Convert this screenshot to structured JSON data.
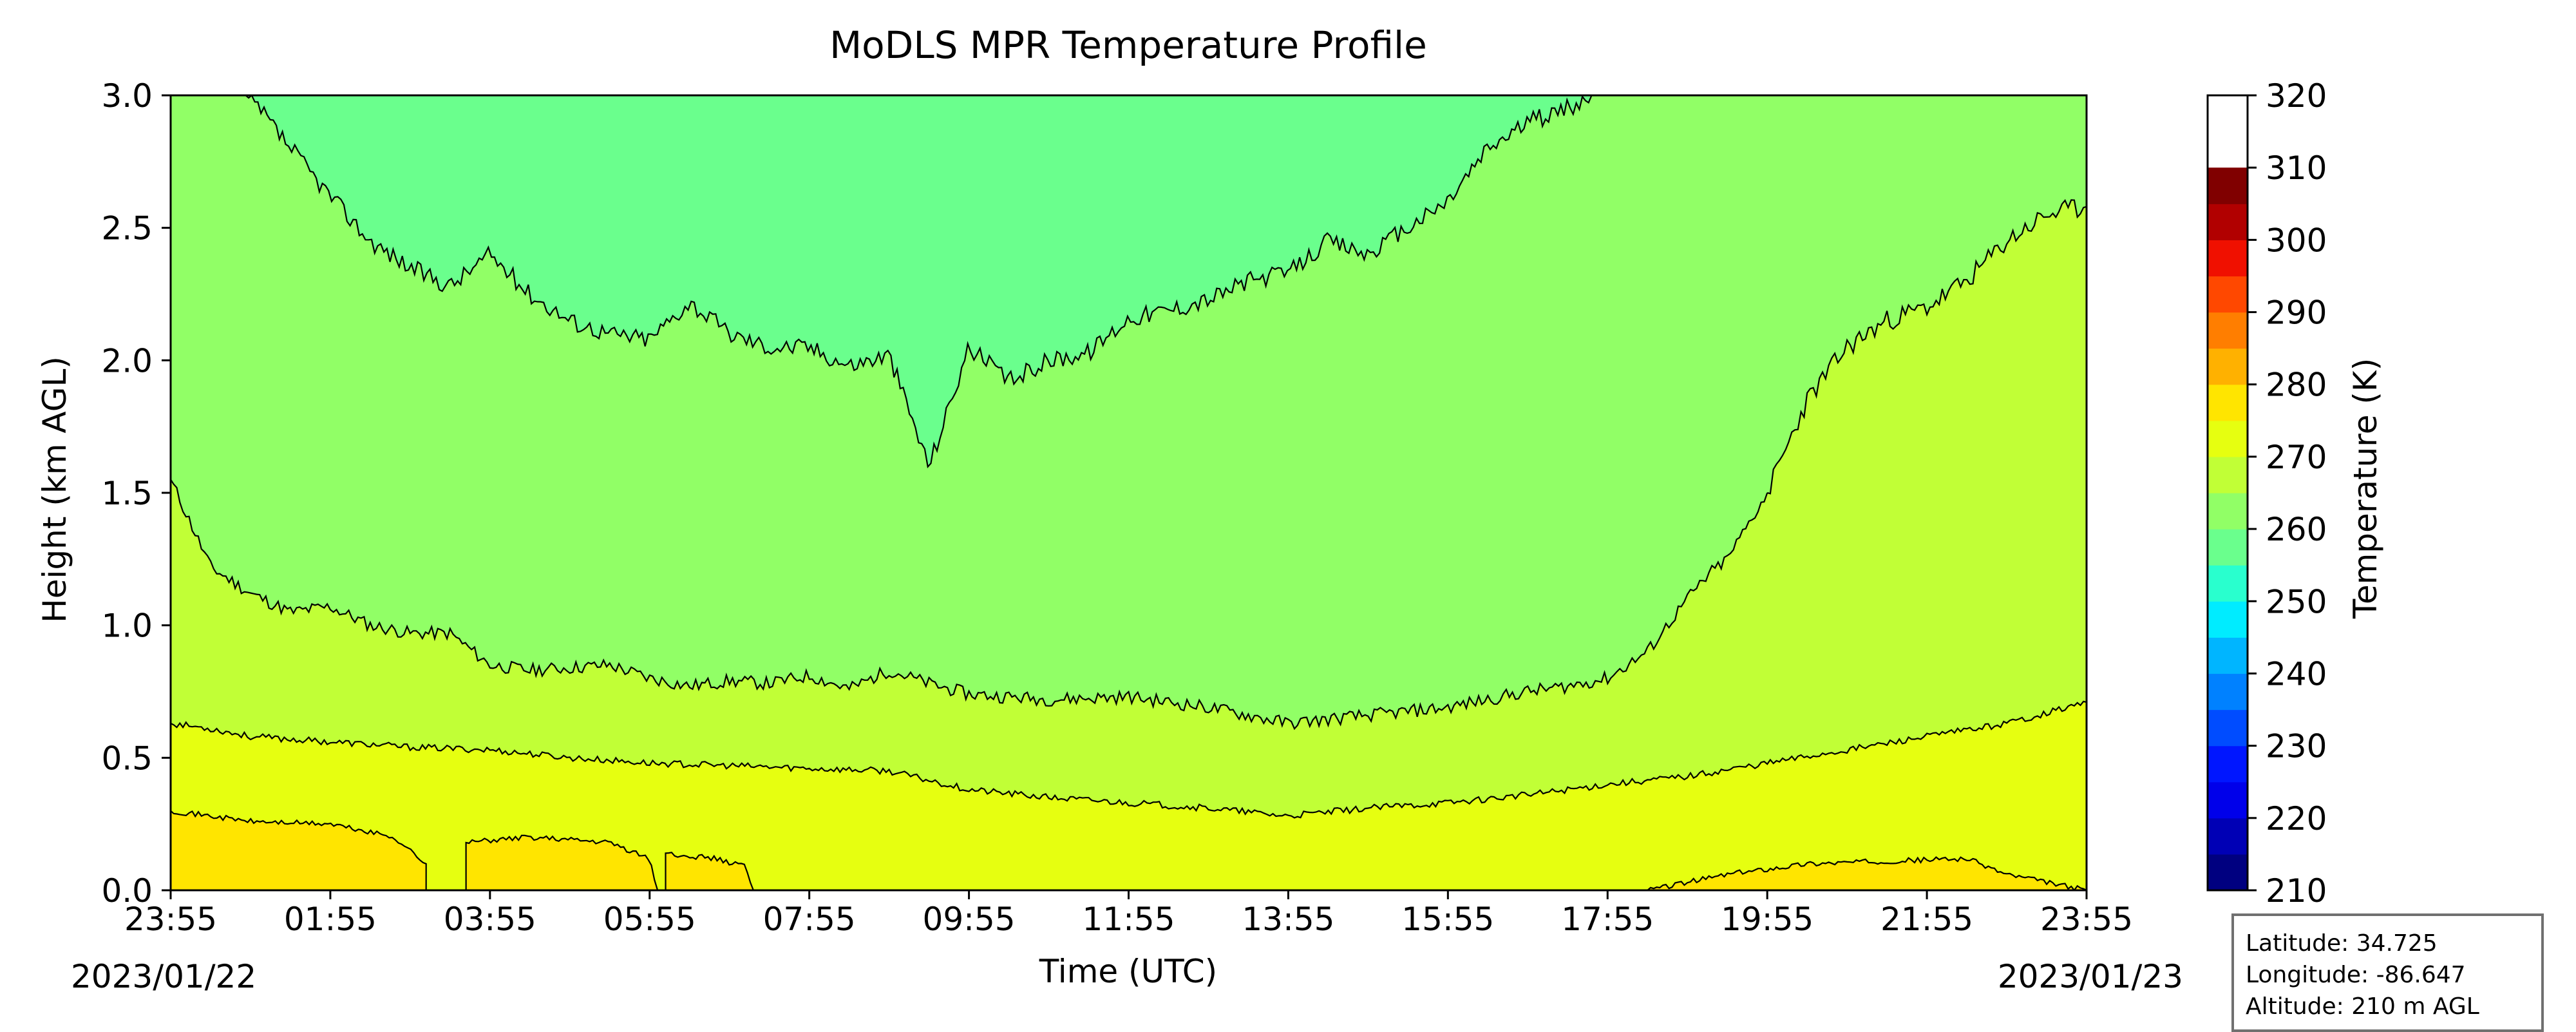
{
  "chart_data": {
    "type": "heatmap",
    "title": "MoDLS MPR Temperature Profile",
    "xlabel": "Time (UTC)",
    "ylabel": "Height (km AGL)",
    "colorbar_label": "Temperature (K)",
    "x_tick_labels": [
      "23:55",
      "01:55",
      "03:55",
      "05:55",
      "07:55",
      "09:55",
      "11:55",
      "13:55",
      "15:55",
      "17:55",
      "19:55",
      "21:55",
      "23:55"
    ],
    "x_tick_hours": [
      0,
      2,
      4,
      6,
      8,
      10,
      12,
      14,
      16,
      18,
      20,
      22,
      24
    ],
    "xlim_hours": [
      0,
      24
    ],
    "start_date": "2023/01/22",
    "end_date": "2023/01/23",
    "y_ticks": [
      "0.0",
      "0.5",
      "1.0",
      "1.5",
      "2.0",
      "2.5",
      "3.0"
    ],
    "ylim": [
      0,
      3
    ],
    "colorbar_ticks": [
      "210",
      "220",
      "230",
      "240",
      "250",
      "260",
      "270",
      "280",
      "290",
      "300",
      "310",
      "320"
    ],
    "colorbar_range": [
      210,
      320
    ],
    "colorbar_step": 5,
    "colorbar_colors": [
      "#000080",
      "#0000b5",
      "#0000ea",
      "#0016ff",
      "#004cff",
      "#0081ff",
      "#00b5ff",
      "#00ecff",
      "#29ffce",
      "#6aff8d",
      "#91ff66",
      "#c1ff36",
      "#e6ff10",
      "#ffe500",
      "#ffb100",
      "#ff7e00",
      "#ff4800",
      "#f01000",
      "#b10000",
      "#800000"
    ],
    "fill_colors": {
      "band_280_285": "#ffe500",
      "band_275_280": "#e6ff10",
      "band_270_275": "#c1ff36",
      "band_265_270": "#91ff66",
      "band_260_265": "#6aff8d"
    },
    "contour_levels": [
      {
        "level_K": 275,
        "x_hours": [
          0,
          0.5,
          1,
          1.5,
          2,
          3,
          4,
          5,
          6,
          7,
          8,
          9,
          10,
          11,
          12,
          13,
          14,
          15,
          16,
          17,
          18,
          19,
          20,
          21,
          22,
          23,
          24
        ],
        "height_km": [
          0.63,
          0.61,
          0.58,
          0.57,
          0.56,
          0.54,
          0.53,
          0.5,
          0.48,
          0.47,
          0.46,
          0.45,
          0.38,
          0.35,
          0.33,
          0.31,
          0.28,
          0.31,
          0.33,
          0.36,
          0.4,
          0.43,
          0.48,
          0.53,
          0.58,
          0.63,
          0.71
        ]
      },
      {
        "level_K": 270,
        "x_hours": [
          0,
          0.5,
          1,
          1.5,
          2,
          2.5,
          3,
          3.5,
          4,
          4.5,
          5,
          5.5,
          6,
          6.5,
          7,
          7.5,
          8,
          8.5,
          9,
          9.5,
          10,
          11,
          12,
          13,
          14,
          15,
          16,
          17,
          17.5,
          18,
          18.5,
          19,
          19.3,
          19.5,
          20
        ],
        "height_km": [
          1.55,
          1.22,
          1.12,
          1.05,
          1.07,
          1.0,
          0.97,
          0.97,
          0.85,
          0.83,
          0.84,
          0.85,
          0.8,
          0.77,
          0.79,
          0.78,
          0.81,
          0.76,
          0.83,
          0.78,
          0.74,
          0.72,
          0.73,
          0.69,
          0.63,
          0.66,
          0.69,
          0.75,
          0.77,
          0.8,
          0.9,
          1.1,
          1.2,
          1.25,
          1.5
        ]
      },
      {
        "level_K": 265,
        "x_hours": [
          0.9,
          1.1,
          1.5,
          2,
          2.5,
          3,
          3.5,
          4,
          4.5,
          5,
          5.5,
          6,
          6.5,
          7,
          7.5,
          8,
          8.5,
          9,
          9.5,
          10,
          10.5,
          11,
          11.5,
          12,
          12.5,
          13,
          13.5,
          14,
          14.5,
          15,
          15.5,
          16,
          16.5,
          17,
          17.5,
          17.8
        ],
        "height_km": [
          3.0,
          2.95,
          2.8,
          2.62,
          2.45,
          2.35,
          2.28,
          2.4,
          2.25,
          2.15,
          2.1,
          2.08,
          2.22,
          2.1,
          2.05,
          2.05,
          1.98,
          2.02,
          1.6,
          2.05,
          1.92,
          2.0,
          2.03,
          2.16,
          2.19,
          2.23,
          2.3,
          2.33,
          2.45,
          2.4,
          2.5,
          2.6,
          2.8,
          2.9,
          2.95,
          3.0
        ]
      },
      {
        "level_K": 270,
        "x_hours": [
          20,
          20.5,
          21,
          21.5,
          22,
          22.5,
          23,
          23.5,
          24
        ],
        "height_km": [
          1.5,
          1.85,
          2.05,
          2.15,
          2.2,
          2.3,
          2.45,
          2.55,
          2.58
        ]
      }
    ],
    "warm_regions_280K": [
      {
        "x_hours": [
          0,
          1,
          2,
          2.8,
          3.2,
          3.2
        ],
        "height_km": [
          0.3,
          0.26,
          0.25,
          0.2,
          0.1,
          0
        ]
      },
      {
        "x_hours": [
          3.7,
          4.5,
          5.5,
          6.0,
          6.1
        ],
        "height_km": [
          0.18,
          0.2,
          0.18,
          0.12,
          0
        ]
      },
      {
        "x_hours": [
          6.2,
          6.8,
          7.2,
          7.3
        ],
        "height_km": [
          0.14,
          0.12,
          0.09,
          0
        ]
      },
      {
        "x_hours": [
          18.5,
          19.5,
          20.5,
          21.5,
          22.5,
          23.0,
          24
        ],
        "height_km": [
          0.0,
          0.06,
          0.1,
          0.11,
          0.12,
          0.06,
          0.0
        ]
      }
    ]
  },
  "info_box": {
    "latitude": "Latitude: 34.725",
    "longitude": "Longitude: -86.647",
    "altitude": "Altitude: 210 m AGL"
  }
}
